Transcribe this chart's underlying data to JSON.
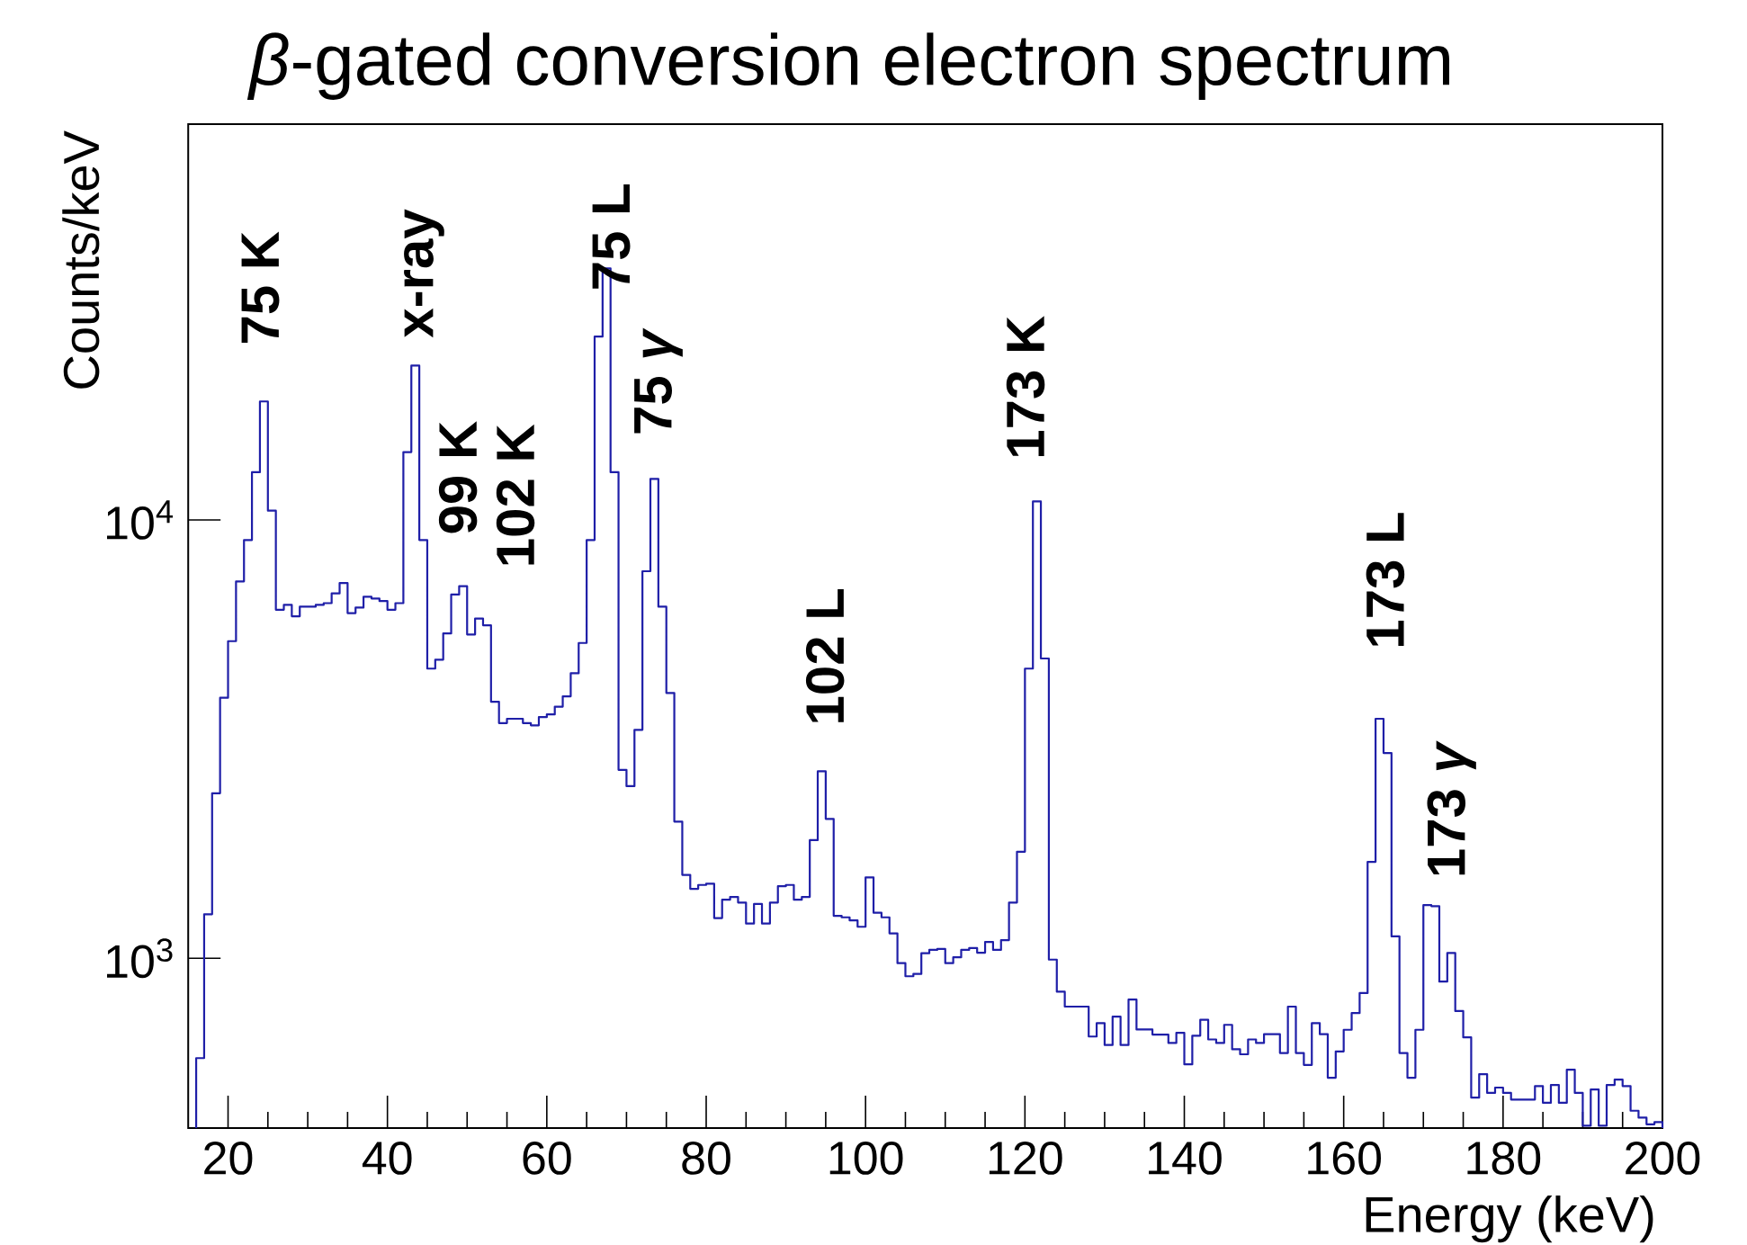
{
  "chart_data": {
    "type": "histogram",
    "title": "*β*-gated conversion electron spectrum",
    "xlabel": "Energy (keV)",
    "ylabel": "Counts/keV",
    "color": "#1f1fa8",
    "log": "y",
    "xlim": [
      15,
      200
    ],
    "ylim": [
      410,
      80000
    ],
    "xticks": [
      20,
      40,
      60,
      80,
      100,
      120,
      140,
      160,
      180,
      200
    ],
    "yticks": [
      {
        "value": 1000,
        "label": "10$^{3}$"
      },
      {
        "value": 10000,
        "label": "10$^{4}$"
      }
    ],
    "bins": [
      16,
      17,
      18,
      19,
      20,
      21,
      22,
      23,
      24,
      25,
      26,
      27,
      28,
      29,
      30,
      31,
      32,
      33,
      34,
      35,
      36,
      37,
      38,
      39,
      40,
      41,
      42,
      43,
      44,
      45,
      46,
      47,
      48,
      49,
      50,
      51,
      52,
      53,
      54,
      55,
      56,
      57,
      58,
      59,
      60,
      61,
      62,
      63,
      64,
      65,
      66,
      67,
      68,
      69,
      70,
      71,
      72,
      73,
      74,
      75,
      76,
      77,
      78,
      79,
      80,
      81,
      82,
      83,
      84,
      85,
      86,
      87,
      88,
      89,
      90,
      91,
      92,
      93,
      94,
      95,
      96,
      97,
      98,
      99,
      100,
      101,
      102,
      103,
      104,
      105,
      106,
      107,
      108,
      109,
      110,
      111,
      112,
      113,
      114,
      115,
      116,
      117,
      118,
      119,
      120,
      121,
      122,
      123,
      124,
      125,
      126,
      127,
      128,
      129,
      130,
      131,
      132,
      133,
      134,
      135,
      136,
      137,
      138,
      139,
      140,
      141,
      142,
      143,
      144,
      145,
      146,
      147,
      148,
      149,
      150,
      151,
      152,
      153,
      154,
      155,
      156,
      157,
      158,
      159,
      160,
      161,
      162,
      163,
      164,
      165,
      166,
      167,
      168,
      169,
      170,
      171,
      172,
      173,
      174,
      175,
      176,
      177,
      178,
      179,
      180,
      181,
      182,
      183,
      184,
      185,
      186,
      187,
      188,
      189,
      190,
      191,
      192,
      193,
      194,
      195,
      196,
      197,
      198,
      199,
      200
    ],
    "values": [
      592,
      1260,
      2380,
      3930,
      5290,
      7240,
      9000,
      12850,
      18640,
      10500,
      6240,
      6400,
      6030,
      6340,
      6340,
      6400,
      6460,
      6800,
      7180,
      6130,
      6310,
      6680,
      6620,
      6530,
      6240,
      6460,
      14280,
      22500,
      9000,
      4580,
      4800,
      5510,
      6760,
      7060,
      5480,
      5960,
      5750,
      3850,
      3440,
      3520,
      3520,
      3440,
      3400,
      3550,
      3600,
      3750,
      3960,
      4470,
      5240,
      9000,
      26200,
      37500,
      12850,
      2690,
      2470,
      3320,
      7640,
      12410,
      6340,
      4030,
      2050,
      1550,
      1440,
      1470,
      1480,
      1235,
      1360,
      1380,
      1340,
      1200,
      1330,
      1200,
      1340,
      1460,
      1470,
      1360,
      1380,
      1860,
      2670,
      2080,
      1250,
      1240,
      1220,
      1180,
      1530,
      1270,
      1240,
      1140,
      975,
      910,
      921,
      1027,
      1045,
      1050,
      975,
      1005,
      1045,
      1055,
      1030,
      1090,
      1045,
      1100,
      1340,
      1750,
      4580,
      11020,
      4830,
      993,
      839,
      776,
      776,
      776,
      663,
      711,
      634,
      736,
      634,
      805,
      688,
      688,
      670,
      670,
      641,
      676,
      573,
      666,
      724,
      653,
      641,
      705,
      620,
      604,
      653,
      641,
      671,
      671,
      608,
      776,
      608,
      571,
      711,
      671,
      534,
      613,
      687,
      750,
      833,
      1660,
      3520,
      2940,
      1122,
      608,
      534,
      687,
      1322,
      1315,
      885,
      1028,
      758,
      660,
      481,
      544,
      493,
      507,
      493,
      476,
      476,
      476,
      511,
      468,
      514,
      468,
      557,
      493,
      415,
      502,
      415,
      514,
      529,
      511,
      449,
      433,
      418,
      423
    ],
    "annotations": [
      "75 K",
      "x-ray",
      "99 K",
      "102 K",
      "75 L",
      "75 *γ*",
      "102 L",
      "173 K",
      "173 L",
      "173 *γ*"
    ]
  }
}
